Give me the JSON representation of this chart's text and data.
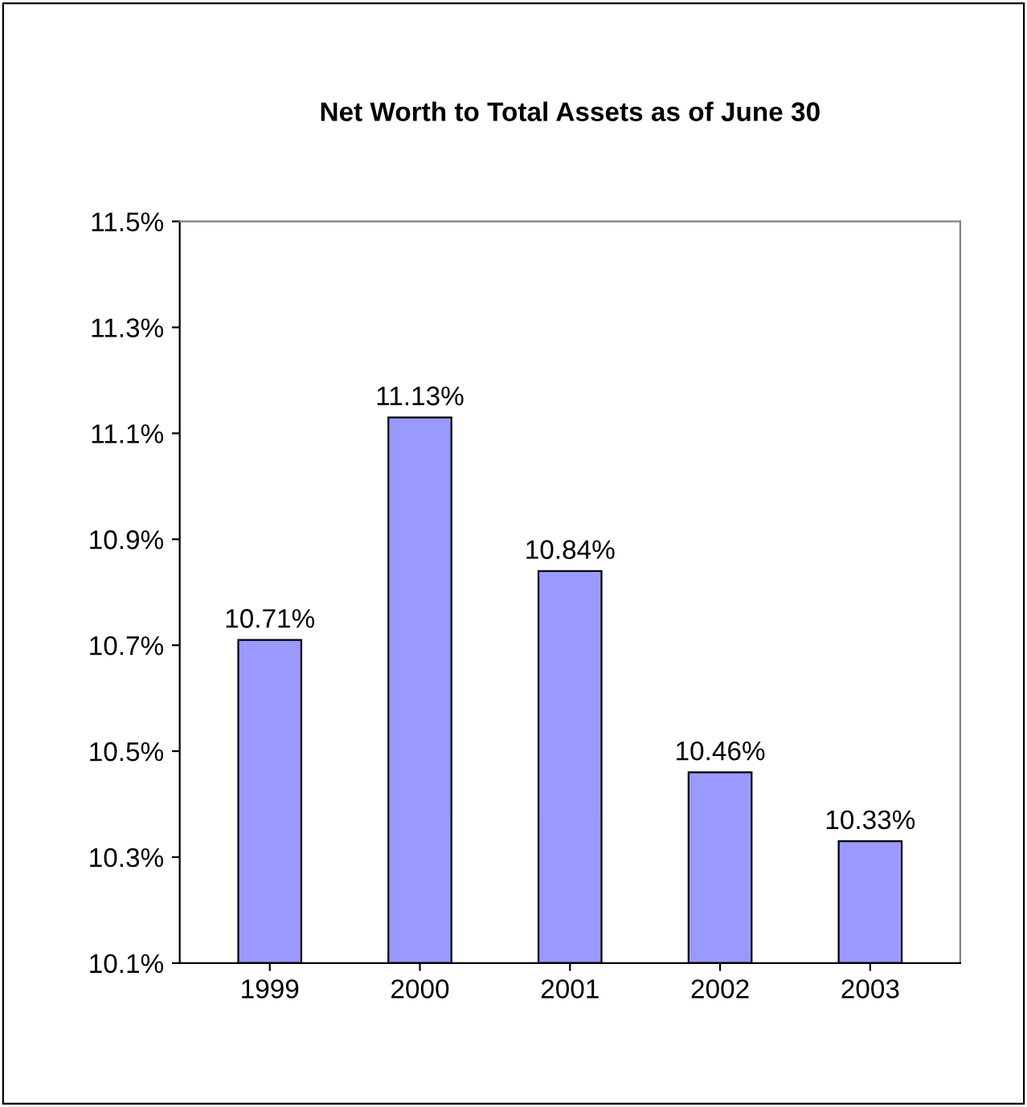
{
  "chart_data": {
    "type": "bar",
    "title": "Net Worth to Total Assets as of June 30",
    "categories": [
      "1999",
      "2000",
      "2001",
      "2002",
      "2003"
    ],
    "values": [
      10.71,
      11.13,
      10.84,
      10.46,
      10.33
    ],
    "value_labels": [
      "10.71%",
      "11.13%",
      "10.84%",
      "10.46%",
      "10.33%"
    ],
    "color": "#9999ff",
    "ylim": [
      10.1,
      11.5
    ],
    "yticks": [
      {
        "value": 10.1,
        "label": "10.1%"
      },
      {
        "value": 10.3,
        "label": "10.3%"
      },
      {
        "value": 10.5,
        "label": "10.5%"
      },
      {
        "value": 10.7,
        "label": "10.7%"
      },
      {
        "value": 10.9,
        "label": "10.9%"
      },
      {
        "value": 11.1,
        "label": "11.1%"
      },
      {
        "value": 11.3,
        "label": "11.3%"
      },
      {
        "value": 11.5,
        "label": "11.5%"
      }
    ],
    "grid": false
  }
}
